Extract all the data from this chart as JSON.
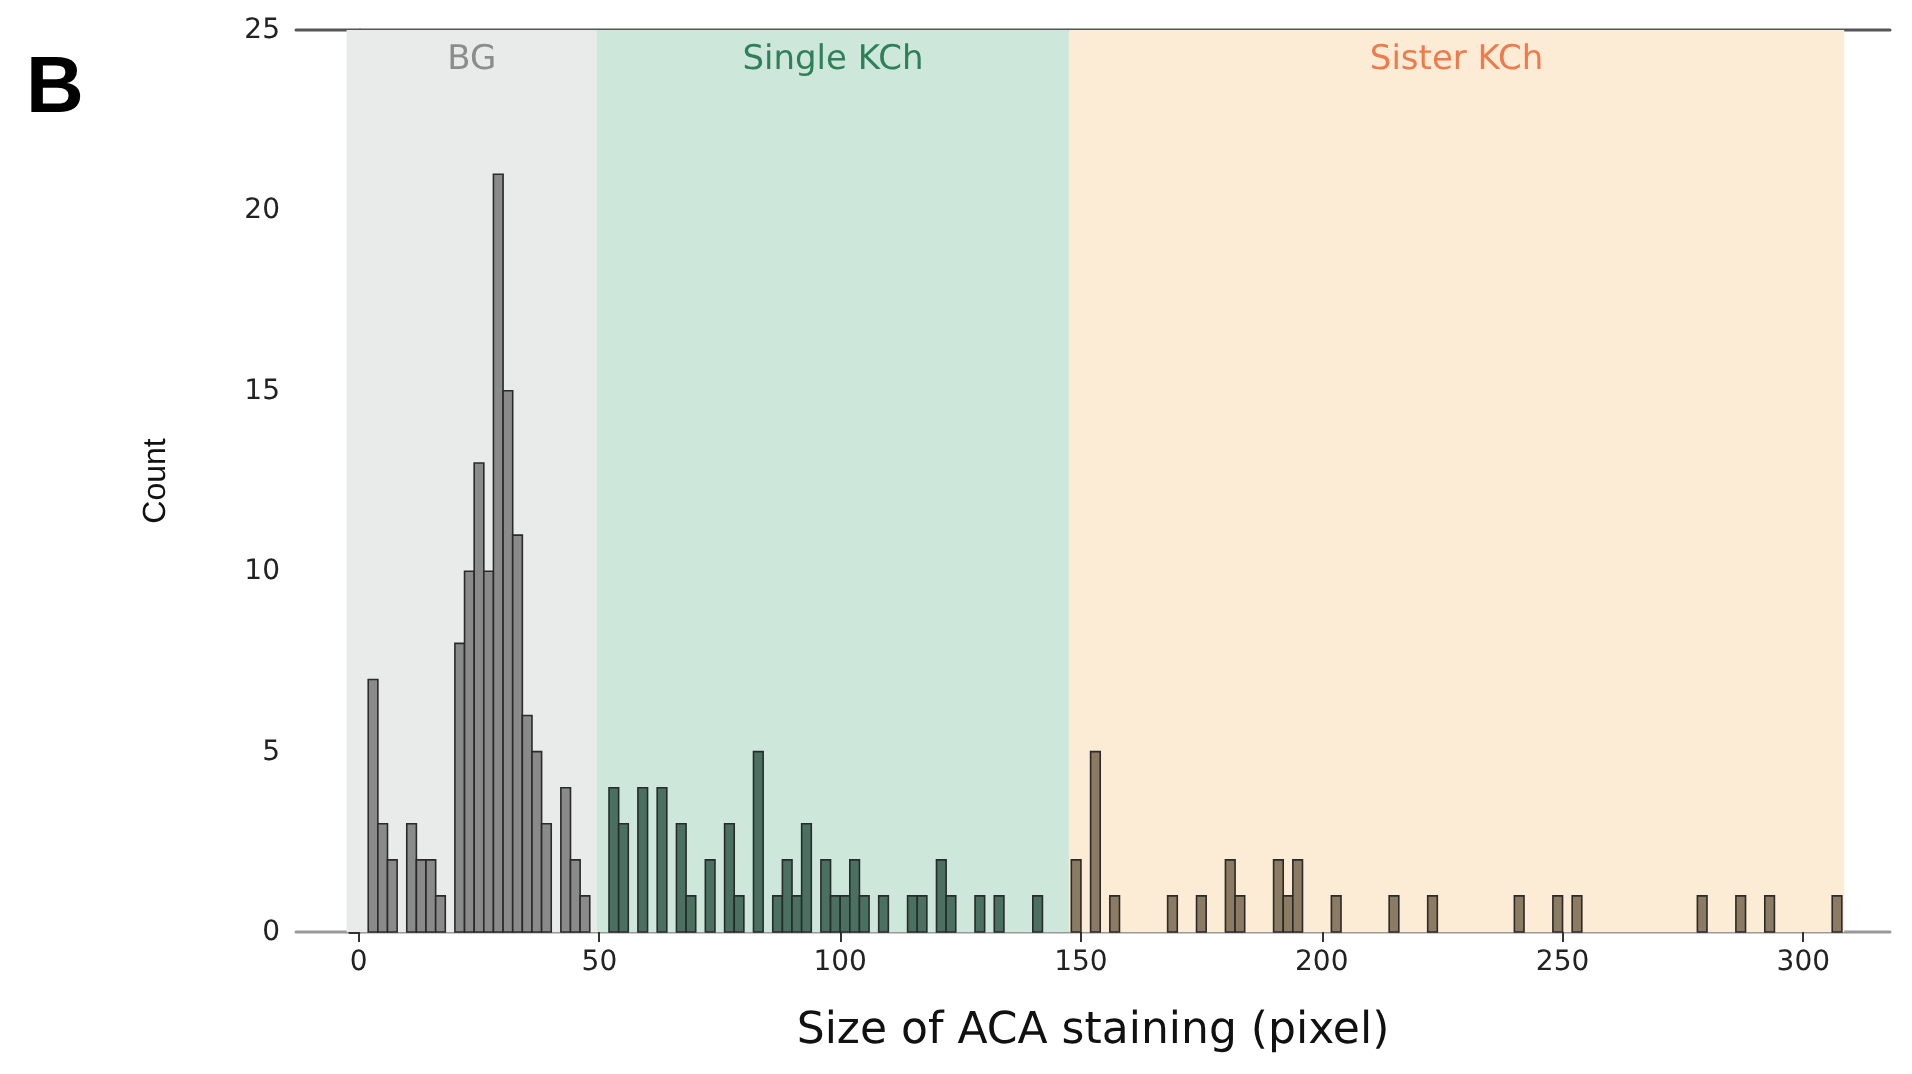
{
  "chart_data": {
    "type": "histogram",
    "xlabel": "Size of ACA staining (pixel)",
    "ylabel": "Count",
    "annotations": [
      "B"
    ],
    "xlim": [
      -13,
      318
    ],
    "xticks": [
      0,
      50,
      100,
      150,
      200,
      250,
      300
    ],
    "ylim": [
      0,
      25
    ],
    "yticks": [
      0,
      5,
      10,
      15,
      20,
      25
    ],
    "bands": [
      {
        "axis": "x",
        "from": -2.5,
        "to": 49.5,
        "label": "BG",
        "color": "#e9ebeb"
      },
      {
        "axis": "x",
        "from": 49.5,
        "to": 147.5,
        "label": "Single KCh",
        "color": "#cde8da"
      },
      {
        "axis": "x",
        "from": 147.5,
        "to": 308.5,
        "label": "Sister KCh",
        "color": "#fdecd5"
      }
    ],
    "bins": [
      0,
      2,
      4,
      6,
      8,
      10,
      12,
      14,
      16,
      18,
      20,
      22,
      24,
      26,
      28,
      30,
      32,
      34,
      36,
      38,
      40,
      42,
      44,
      46,
      48,
      50,
      52,
      54,
      56,
      58,
      60,
      62,
      64,
      66,
      68,
      70,
      72,
      74,
      76,
      78,
      80,
      82,
      84,
      86,
      88,
      90,
      92,
      94,
      96,
      98,
      100,
      102,
      104,
      106,
      108,
      110,
      112,
      114,
      116,
      118,
      120,
      122,
      124,
      126,
      128,
      130,
      132,
      134,
      136,
      138,
      140,
      142,
      144,
      146,
      148,
      150,
      152,
      154,
      156,
      158,
      160,
      162,
      164,
      166,
      168,
      170,
      172,
      174,
      176,
      178,
      180,
      182,
      184,
      186,
      188,
      190,
      192,
      194,
      196,
      198,
      200,
      202,
      204,
      206,
      208,
      210,
      212,
      214,
      216,
      218,
      220,
      222,
      224,
      226,
      228,
      230,
      232,
      234,
      236,
      238,
      240,
      242,
      244,
      246,
      248,
      250,
      252,
      254,
      256,
      258,
      260,
      262,
      264,
      266,
      268,
      270,
      272,
      274,
      276,
      278,
      280,
      282,
      284,
      286,
      288,
      290,
      292,
      294,
      296,
      298,
      300,
      302,
      304,
      306,
      308,
      310
    ],
    "values": [
      0,
      7,
      3,
      2,
      0,
      3,
      2,
      2,
      1,
      0,
      8,
      10,
      13,
      10,
      21,
      15,
      11,
      6,
      5,
      3,
      0,
      4,
      2,
      1,
      0,
      0,
      4,
      3,
      0,
      4,
      0,
      4,
      0,
      3,
      1,
      0,
      2,
      0,
      3,
      1,
      0,
      5,
      0,
      1,
      2,
      1,
      3,
      0,
      2,
      1,
      1,
      2,
      1,
      0,
      1,
      0,
      0,
      1,
      1,
      0,
      2,
      1,
      0,
      0,
      1,
      0,
      1,
      0,
      0,
      0,
      1,
      0,
      0,
      0,
      2,
      0,
      5,
      0,
      1,
      0,
      0,
      0,
      0,
      0,
      1,
      0,
      0,
      1,
      0,
      0,
      2,
      1,
      0,
      0,
      0,
      2,
      1,
      2,
      0,
      0,
      0,
      1,
      0,
      0,
      0,
      0,
      0,
      1,
      0,
      0,
      0,
      1,
      0,
      0,
      0,
      0,
      0,
      0,
      0,
      0,
      1,
      0,
      0,
      0,
      1,
      0,
      1,
      0,
      0,
      0,
      0,
      0,
      0,
      0,
      0,
      0,
      0,
      0,
      0,
      1,
      0,
      0,
      0,
      1,
      0,
      0,
      1,
      0,
      0,
      0,
      0,
      0,
      0,
      1,
      0
    ],
    "colors": [
      null,
      "#8a8a8a",
      "#8a8a8a",
      "#8a8a8a",
      null,
      "#8a8a8a",
      "#8a8a8a",
      "#8a8a8a",
      "#8a8a8a",
      null,
      "#8a8a8a",
      "#8a8a8a",
      "#8a8a8a",
      "#8a8a8a",
      "#8a8a8a",
      "#8a8a8a",
      "#8a8a8a",
      "#8a8a8a",
      "#8a8a8a",
      "#8a8a8a",
      null,
      "#8a8a8a",
      "#8a8a8a",
      "#8a8a8a",
      null,
      null,
      "#4a7060",
      "#4a7060",
      null,
      "#4a7060",
      null,
      "#4a7060",
      null,
      "#4a7060",
      "#4a7060",
      null,
      "#4a7060",
      null,
      "#4a7060",
      "#4a7060",
      null,
      "#4a7060",
      null,
      "#4a7060",
      "#4a7060",
      "#4a7060",
      "#4a7060",
      null,
      "#4a7060",
      "#4a7060",
      "#4a7060",
      "#4a7060",
      "#4a7060",
      null,
      "#4a7060",
      null,
      null,
      "#4a7060",
      "#4a7060",
      null,
      "#4a7060",
      "#4a7060",
      null,
      null,
      "#4a7060",
      null,
      "#4a7060",
      null,
      null,
      null,
      "#4a7060",
      null,
      null,
      null,
      "#8b7b62",
      null,
      "#8b7b62",
      null,
      "#8b7b62",
      null,
      null,
      null,
      null,
      null,
      "#8b7b62",
      null,
      null,
      "#8b7b62",
      null,
      null,
      "#8b7b62",
      "#8b7b62",
      null,
      null,
      null,
      "#8b7b62",
      "#8b7b62",
      "#8b7b62",
      null,
      null,
      null,
      "#8b7b62",
      null,
      null,
      null,
      null,
      null,
      "#8b7b62",
      null,
      null,
      null,
      "#8b7b62",
      null,
      null,
      null,
      null,
      null,
      null,
      null,
      null,
      "#8b7b62",
      null,
      null,
      null,
      "#8b7b62",
      null,
      "#8b7b62",
      null,
      null,
      null,
      null,
      null,
      null,
      null,
      null,
      null,
      null,
      null,
      null,
      "#8b7b62",
      null,
      null,
      null,
      "#8b7b62",
      null,
      null,
      "#8b7b62",
      null,
      null,
      null,
      null,
      null,
      null,
      "#8b7b62",
      null
    ]
  }
}
